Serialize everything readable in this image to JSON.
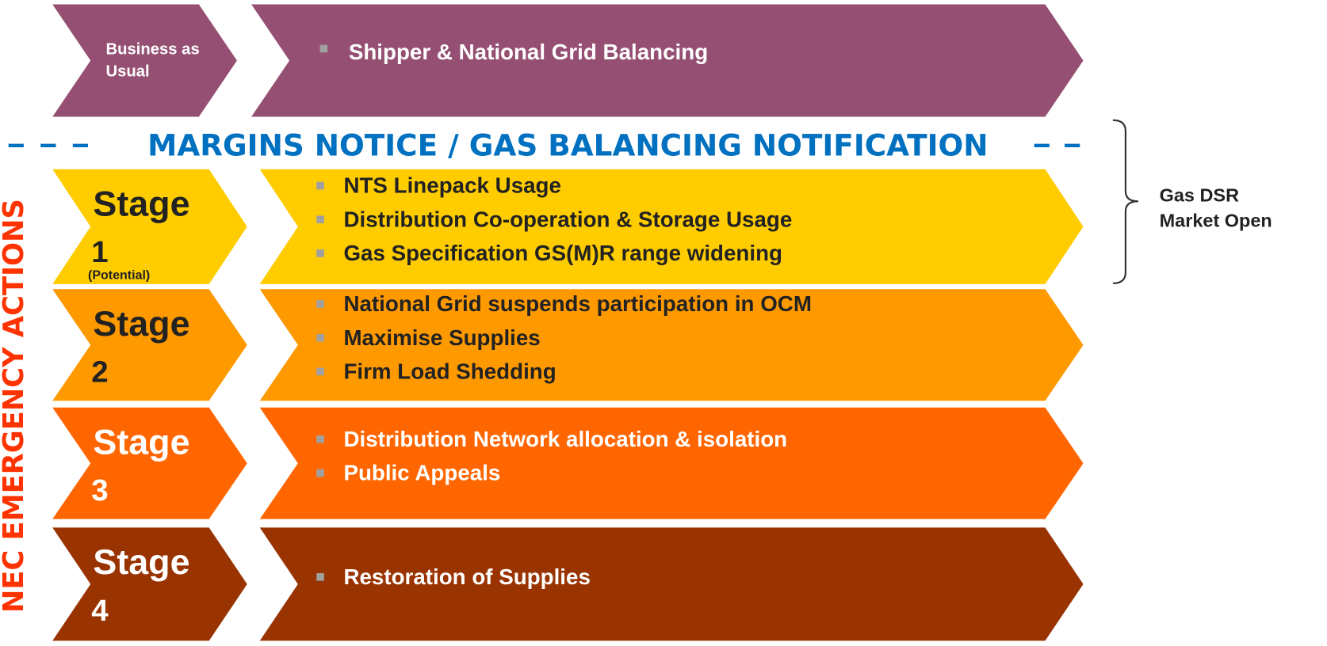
{
  "business": {
    "label": [
      "Business as",
      "Usual"
    ],
    "items": [
      "Shipper & National Grid Balancing"
    ]
  },
  "notice": "MARGINS NOTICE / GAS BALANCING NOTIFICATION",
  "side_label": "NEC EMERGENCY ACTIONS",
  "bracket_label": [
    "Gas DSR",
    "Market Open"
  ],
  "stages": [
    {
      "title": "Stage",
      "number": "1",
      "note": "(Potential)",
      "items": [
        "NTS Linepack Usage",
        "Distribution Co-operation & Storage Usage",
        "Gas Specification GS(M)R range widening"
      ]
    },
    {
      "title": "Stage",
      "number": "2",
      "items": [
        "National Grid suspends participation in OCM",
        "Maximise Supplies",
        "Firm Load Shedding"
      ]
    },
    {
      "title": "Stage",
      "number": "3",
      "items": [
        "Distribution Network allocation & isolation",
        "Public Appeals"
      ]
    },
    {
      "title": "Stage",
      "number": "4",
      "items": [
        "Restoration of Supplies"
      ]
    }
  ]
}
